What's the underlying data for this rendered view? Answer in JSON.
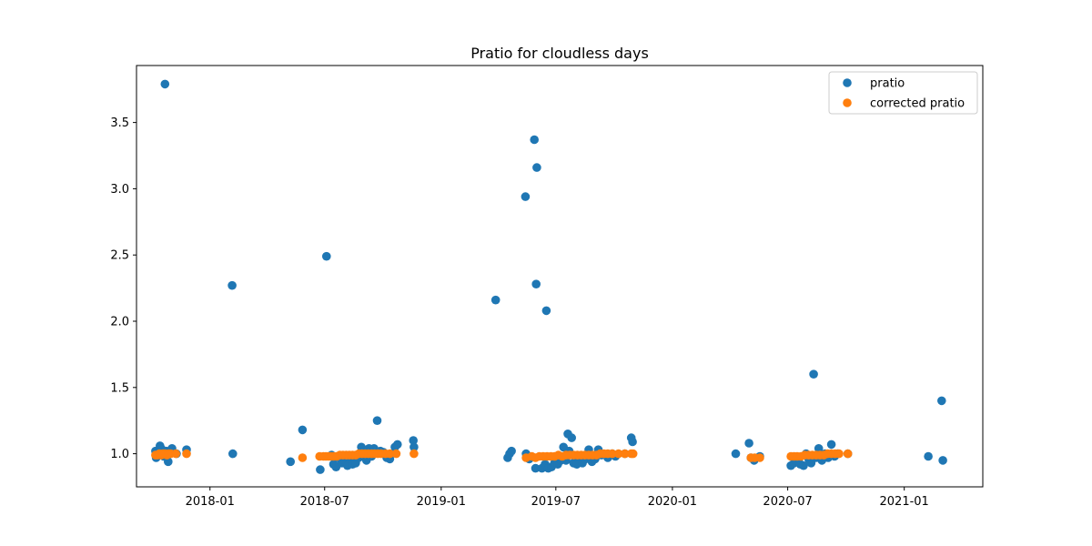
{
  "chart_data": {
    "type": "scatter",
    "title": "Pratio for cloudless days",
    "xlabel": "",
    "ylabel": "",
    "x_axis_type": "date",
    "xlim": [
      "2017-09-07",
      "2021-05-05"
    ],
    "ylim": [
      0.75,
      3.93
    ],
    "x_ticks": [
      "2018-01-01",
      "2018-07-01",
      "2019-01-01",
      "2019-07-01",
      "2020-01-01",
      "2020-07-01",
      "2021-01-01"
    ],
    "x_tick_labels": [
      "2018-01",
      "2018-07",
      "2019-01",
      "2019-07",
      "2020-01",
      "2020-07",
      "2021-01"
    ],
    "y_ticks": [
      1.0,
      1.5,
      2.0,
      2.5,
      3.0,
      3.5
    ],
    "y_tick_labels": [
      "1.0",
      "1.5",
      "2.0",
      "2.5",
      "3.0",
      "3.5"
    ],
    "grid": false,
    "legend_position": "upper right",
    "series": [
      {
        "name": "pratio",
        "color": "#1f77b4",
        "points": [
          [
            "2017-10-07",
            1.02
          ],
          [
            "2017-10-08",
            0.97
          ],
          [
            "2017-10-10",
            0.99
          ],
          [
            "2017-10-12",
            1.01
          ],
          [
            "2017-10-14",
            1.06
          ],
          [
            "2017-10-16",
            1.04
          ],
          [
            "2017-10-18",
            1.0
          ],
          [
            "2017-10-20",
            0.98
          ],
          [
            "2017-10-22",
            3.79
          ],
          [
            "2017-10-24",
            1.02
          ],
          [
            "2017-10-27",
            0.94
          ],
          [
            "2017-10-30",
            1.0
          ],
          [
            "2017-11-02",
            1.04
          ],
          [
            "2017-11-09",
            1.0
          ],
          [
            "2017-11-25",
            1.03
          ],
          [
            "2018-02-05",
            2.27
          ],
          [
            "2018-02-06",
            1.0
          ],
          [
            "2018-05-08",
            0.94
          ],
          [
            "2018-05-27",
            1.18
          ],
          [
            "2018-06-24",
            0.88
          ],
          [
            "2018-07-04",
            2.49
          ],
          [
            "2018-07-12",
            0.99
          ],
          [
            "2018-07-15",
            0.92
          ],
          [
            "2018-07-19",
            0.9
          ],
          [
            "2018-07-23",
            0.97
          ],
          [
            "2018-07-28",
            0.93
          ],
          [
            "2018-08-02",
            0.95
          ],
          [
            "2018-08-06",
            0.91
          ],
          [
            "2018-08-10",
            0.96
          ],
          [
            "2018-08-14",
            0.92
          ],
          [
            "2018-08-19",
            0.93
          ],
          [
            "2018-08-24",
            0.97
          ],
          [
            "2018-08-28",
            1.05
          ],
          [
            "2018-09-01",
            1.0
          ],
          [
            "2018-09-05",
            0.95
          ],
          [
            "2018-09-09",
            1.04
          ],
          [
            "2018-09-13",
            0.98
          ],
          [
            "2018-09-17",
            1.04
          ],
          [
            "2018-09-22",
            1.25
          ],
          [
            "2018-09-27",
            1.02
          ],
          [
            "2018-10-02",
            1.01
          ],
          [
            "2018-10-07",
            0.97
          ],
          [
            "2018-10-12",
            0.96
          ],
          [
            "2018-10-20",
            1.05
          ],
          [
            "2018-10-24",
            1.07
          ],
          [
            "2018-11-18",
            1.1
          ],
          [
            "2018-11-19",
            1.05
          ],
          [
            "2019-03-28",
            2.16
          ],
          [
            "2019-04-16",
            0.97
          ],
          [
            "2019-04-19",
            1.0
          ],
          [
            "2019-04-22",
            1.02
          ],
          [
            "2019-05-14",
            2.94
          ],
          [
            "2019-05-15",
            1.0
          ],
          [
            "2019-05-20",
            0.96
          ],
          [
            "2019-05-28",
            3.37
          ],
          [
            "2019-05-30",
            0.89
          ],
          [
            "2019-05-31",
            2.28
          ],
          [
            "2019-06-01",
            3.16
          ],
          [
            "2019-06-09",
            0.89
          ],
          [
            "2019-06-14",
            0.92
          ],
          [
            "2019-06-16",
            2.08
          ],
          [
            "2019-06-19",
            0.89
          ],
          [
            "2019-06-24",
            0.9
          ],
          [
            "2019-06-29",
            0.93
          ],
          [
            "2019-07-04",
            0.92
          ],
          [
            "2019-07-09",
            0.95
          ],
          [
            "2019-07-13",
            1.05
          ],
          [
            "2019-07-17",
            0.95
          ],
          [
            "2019-07-20",
            1.15
          ],
          [
            "2019-07-22",
            1.02
          ],
          [
            "2019-07-26",
            1.12
          ],
          [
            "2019-07-29",
            0.93
          ],
          [
            "2019-08-03",
            0.92
          ],
          [
            "2019-08-07",
            0.95
          ],
          [
            "2019-08-12",
            0.93
          ],
          [
            "2019-08-17",
            0.96
          ],
          [
            "2019-08-22",
            1.03
          ],
          [
            "2019-08-27",
            0.94
          ],
          [
            "2019-09-01",
            0.96
          ],
          [
            "2019-09-06",
            1.03
          ],
          [
            "2019-09-11",
            0.99
          ],
          [
            "2019-09-21",
            0.97
          ],
          [
            "2019-09-28",
            1.0
          ],
          [
            "2019-10-03",
            0.98
          ],
          [
            "2019-10-18",
            1.0
          ],
          [
            "2019-10-28",
            1.12
          ],
          [
            "2019-10-30",
            1.09
          ],
          [
            "2020-04-10",
            1.0
          ],
          [
            "2020-05-01",
            1.08
          ],
          [
            "2020-05-04",
            0.97
          ],
          [
            "2020-05-09",
            0.95
          ],
          [
            "2020-05-18",
            0.98
          ],
          [
            "2020-07-06",
            0.91
          ],
          [
            "2020-07-11",
            0.93
          ],
          [
            "2020-07-16",
            0.95
          ],
          [
            "2020-07-21",
            0.92
          ],
          [
            "2020-07-26",
            0.91
          ],
          [
            "2020-07-30",
            1.0
          ],
          [
            "2020-08-03",
            0.96
          ],
          [
            "2020-08-07",
            0.93
          ],
          [
            "2020-08-11",
            1.6
          ],
          [
            "2020-08-15",
            0.97
          ],
          [
            "2020-08-19",
            1.04
          ],
          [
            "2020-08-24",
            0.95
          ],
          [
            "2020-08-29",
            1.0
          ],
          [
            "2020-09-03",
            0.97
          ],
          [
            "2020-09-08",
            1.07
          ],
          [
            "2020-09-13",
            0.98
          ],
          [
            "2020-09-18",
            1.0
          ],
          [
            "2020-10-04",
            1.0
          ],
          [
            "2021-02-08",
            0.98
          ],
          [
            "2021-03-01",
            1.4
          ],
          [
            "2021-03-03",
            0.95
          ]
        ]
      },
      {
        "name": "corrected pratio",
        "color": "#ff7f0e",
        "points": [
          [
            "2017-10-07",
            0.99
          ],
          [
            "2017-10-10",
            0.99
          ],
          [
            "2017-10-13",
            1.0
          ],
          [
            "2017-10-16",
            0.99
          ],
          [
            "2017-10-19",
            1.0
          ],
          [
            "2017-10-22",
            1.0
          ],
          [
            "2017-10-25",
            0.99
          ],
          [
            "2017-10-28",
            1.0
          ],
          [
            "2017-10-31",
            1.0
          ],
          [
            "2017-11-08",
            1.0
          ],
          [
            "2017-11-25",
            1.0
          ],
          [
            "2018-05-27",
            0.97
          ],
          [
            "2018-06-23",
            0.98
          ],
          [
            "2018-06-29",
            0.98
          ],
          [
            "2018-07-03",
            0.98
          ],
          [
            "2018-07-07",
            0.98
          ],
          [
            "2018-07-11",
            0.98
          ],
          [
            "2018-07-15",
            0.98
          ],
          [
            "2018-07-20",
            0.98
          ],
          [
            "2018-07-25",
            0.99
          ],
          [
            "2018-07-30",
            0.99
          ],
          [
            "2018-08-04",
            0.99
          ],
          [
            "2018-08-09",
            0.99
          ],
          [
            "2018-08-14",
            0.99
          ],
          [
            "2018-08-19",
            0.99
          ],
          [
            "2018-08-24",
            1.0
          ],
          [
            "2018-08-29",
            1.0
          ],
          [
            "2018-09-03",
            1.0
          ],
          [
            "2018-09-08",
            1.0
          ],
          [
            "2018-09-13",
            1.0
          ],
          [
            "2018-09-18",
            1.0
          ],
          [
            "2018-09-23",
            1.0
          ],
          [
            "2018-09-28",
            1.0
          ],
          [
            "2018-10-05",
            1.0
          ],
          [
            "2018-10-12",
            1.0
          ],
          [
            "2018-10-22",
            1.0
          ],
          [
            "2018-11-19",
            1.0
          ],
          [
            "2019-05-15",
            0.97
          ],
          [
            "2019-05-24",
            0.98
          ],
          [
            "2019-05-30",
            0.97
          ],
          [
            "2019-06-05",
            0.98
          ],
          [
            "2019-06-11",
            0.98
          ],
          [
            "2019-06-17",
            0.98
          ],
          [
            "2019-06-23",
            0.98
          ],
          [
            "2019-06-29",
            0.98
          ],
          [
            "2019-07-05",
            0.99
          ],
          [
            "2019-07-11",
            0.98
          ],
          [
            "2019-07-17",
            0.99
          ],
          [
            "2019-07-23",
            0.99
          ],
          [
            "2019-07-29",
            0.99
          ],
          [
            "2019-08-04",
            0.99
          ],
          [
            "2019-08-10",
            0.99
          ],
          [
            "2019-08-16",
            0.99
          ],
          [
            "2019-08-22",
            0.99
          ],
          [
            "2019-08-28",
            0.99
          ],
          [
            "2019-09-03",
            0.99
          ],
          [
            "2019-09-09",
            1.0
          ],
          [
            "2019-09-15",
            1.0
          ],
          [
            "2019-09-21",
            1.0
          ],
          [
            "2019-09-28",
            1.0
          ],
          [
            "2019-10-08",
            1.0
          ],
          [
            "2019-10-18",
            1.0
          ],
          [
            "2019-10-28",
            1.0
          ],
          [
            "2019-10-31",
            1.0
          ],
          [
            "2020-05-04",
            0.97
          ],
          [
            "2020-05-10",
            0.97
          ],
          [
            "2020-05-18",
            0.97
          ],
          [
            "2020-07-06",
            0.98
          ],
          [
            "2020-07-11",
            0.98
          ],
          [
            "2020-07-16",
            0.98
          ],
          [
            "2020-07-22",
            0.98
          ],
          [
            "2020-07-28",
            0.99
          ],
          [
            "2020-08-03",
            0.99
          ],
          [
            "2020-08-09",
            0.99
          ],
          [
            "2020-08-15",
            0.99
          ],
          [
            "2020-08-21",
            0.99
          ],
          [
            "2020-08-27",
            0.99
          ],
          [
            "2020-09-02",
            1.0
          ],
          [
            "2020-09-08",
            1.0
          ],
          [
            "2020-09-14",
            1.0
          ],
          [
            "2020-09-20",
            1.0
          ],
          [
            "2020-10-04",
            1.0
          ]
        ]
      }
    ]
  }
}
